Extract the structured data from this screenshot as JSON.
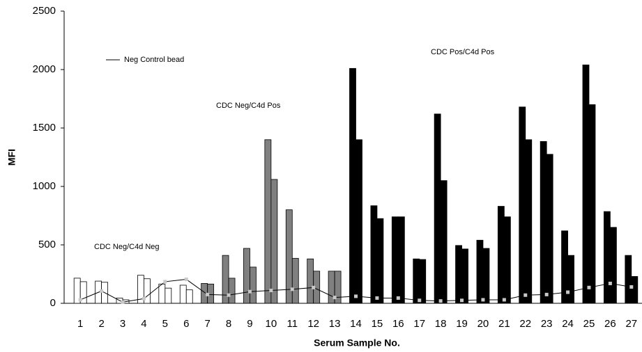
{
  "chart_data": {
    "type": "bar",
    "ylabel": "MFI",
    "xlabel": "Serum Sample No.",
    "categories": [
      "1",
      "2",
      "3",
      "4",
      "5",
      "6",
      "7",
      "8",
      "9",
      "10",
      "11",
      "12",
      "13",
      "14",
      "15",
      "16",
      "17",
      "18",
      "19",
      "20",
      "21",
      "22",
      "23",
      "24",
      "25",
      "26",
      "27"
    ],
    "bar_colors": [
      "#ffffff",
      "#ffffff",
      "#ffffff",
      "#ffffff",
      "#ffffff",
      "#ffffff",
      "#808080",
      "#808080",
      "#808080",
      "#808080",
      "#808080",
      "#808080",
      "#808080",
      "#000000",
      "#000000",
      "#000000",
      "#000000",
      "#000000",
      "#000000",
      "#000000",
      "#000000",
      "#000000",
      "#000000",
      "#000000",
      "#000000",
      "#000000",
      "#000000"
    ],
    "series": [
      {
        "values": [
          215,
          190,
          45,
          240,
          165,
          155,
          170,
          410,
          470,
          1400,
          800,
          380,
          275,
          2010,
          835,
          740,
          380,
          1620,
          495,
          540,
          830,
          1680,
          1385,
          620,
          2040,
          785,
          410
        ]
      },
      {
        "values": [
          185,
          180,
          30,
          210,
          130,
          115,
          165,
          215,
          310,
          1060,
          385,
          275,
          275,
          1400,
          725,
          740,
          375,
          1050,
          465,
          470,
          740,
          1400,
          1275,
          410,
          1700,
          650,
          230
        ]
      }
    ],
    "line_series": {
      "name": "Neg Control bead",
      "color": "#000000",
      "marker_color": "#c8c8c8",
      "values": [
        30,
        105,
        10,
        40,
        185,
        205,
        75,
        70,
        100,
        110,
        120,
        135,
        50,
        60,
        45,
        45,
        25,
        20,
        25,
        30,
        30,
        70,
        75,
        95,
        135,
        170,
        140
      ]
    },
    "annotations": [
      "CDC Neg/C4d Neg",
      "CDC Neg/C4d Pos",
      "CDC Pos/C4d Pos"
    ],
    "ylim": [
      0,
      2500
    ],
    "yticks": [
      0,
      500,
      1000,
      1500,
      2000,
      2500
    ]
  }
}
